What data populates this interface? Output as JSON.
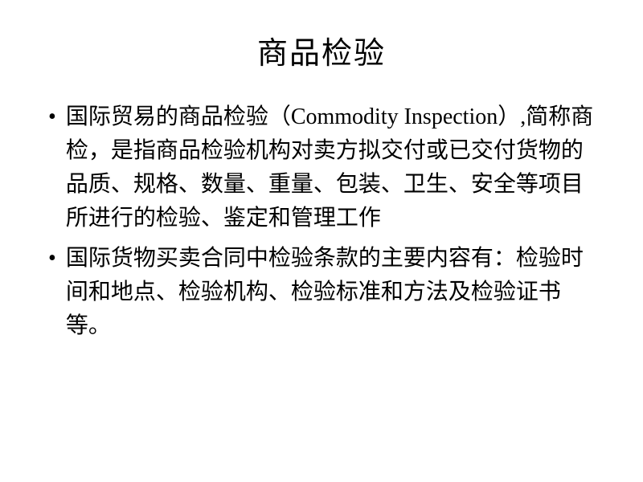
{
  "slide": {
    "title": "商品检验",
    "title_fontsize": 38,
    "title_color": "#000000",
    "background_color": "#ffffff",
    "body_fontsize": 28,
    "body_line_height": 42,
    "body_color": "#000000",
    "bullet_marker": "•",
    "bullets": [
      {
        "text": "国际贸易的商品检验（Commodity Inspection）,简称商检，是指商品检验机构对卖方拟交付或已交付货物的品质、规格、数量、重量、包装、卫生、安全等项目所进行的检验、鉴定和管理工作"
      },
      {
        "text": "国际货物买卖合同中检验条款的主要内容有：检验时间和地点、检验机构、检验标准和方法及检验证书等。"
      }
    ]
  }
}
